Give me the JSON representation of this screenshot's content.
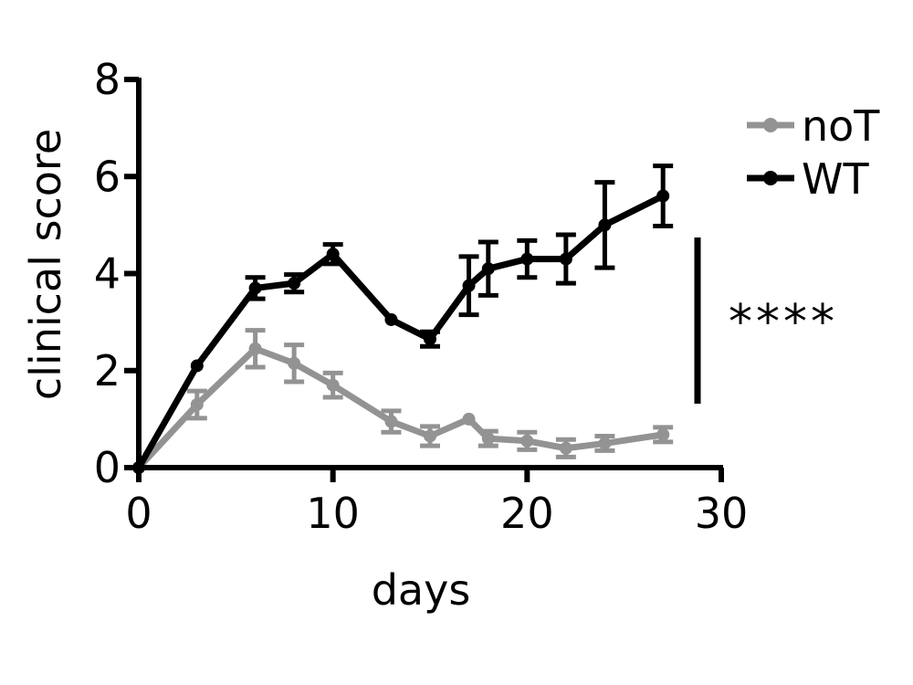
{
  "chart_data": {
    "type": "line",
    "title": "",
    "xlabel": "days",
    "ylabel": "clinical score",
    "xlim": [
      0,
      30
    ],
    "ylim": [
      0,
      8
    ],
    "xticks": [
      "0",
      "10",
      "20",
      "30"
    ],
    "yticks": [
      "0",
      "2",
      "4",
      "6",
      "8"
    ],
    "legend_position": "top-right",
    "significance": "****",
    "series": [
      {
        "name": "noT",
        "color": "#939393",
        "x": [
          0,
          3,
          6,
          8,
          10,
          13,
          15,
          17,
          18,
          20,
          22,
          24,
          27
        ],
        "y": [
          0,
          1.3,
          2.45,
          2.15,
          1.7,
          0.95,
          0.65,
          1.0,
          0.6,
          0.55,
          0.4,
          0.5,
          0.68
        ],
        "err": [
          0,
          0.28,
          0.38,
          0.38,
          0.25,
          0.22,
          0.2,
          0.0,
          0.15,
          0.18,
          0.18,
          0.15,
          0.15
        ]
      },
      {
        "name": "WT",
        "color": "#000000",
        "x": [
          0,
          3,
          6,
          8,
          10,
          13,
          15,
          17,
          18,
          20,
          22,
          24,
          27
        ],
        "y": [
          0,
          2.1,
          3.7,
          3.8,
          4.4,
          3.05,
          2.65,
          3.75,
          4.1,
          4.3,
          4.3,
          5.0,
          5.6
        ],
        "err": [
          0,
          0,
          0.22,
          0.18,
          0.2,
          0,
          0.15,
          0.6,
          0.55,
          0.38,
          0.5,
          0.88,
          0.62
        ]
      }
    ]
  }
}
